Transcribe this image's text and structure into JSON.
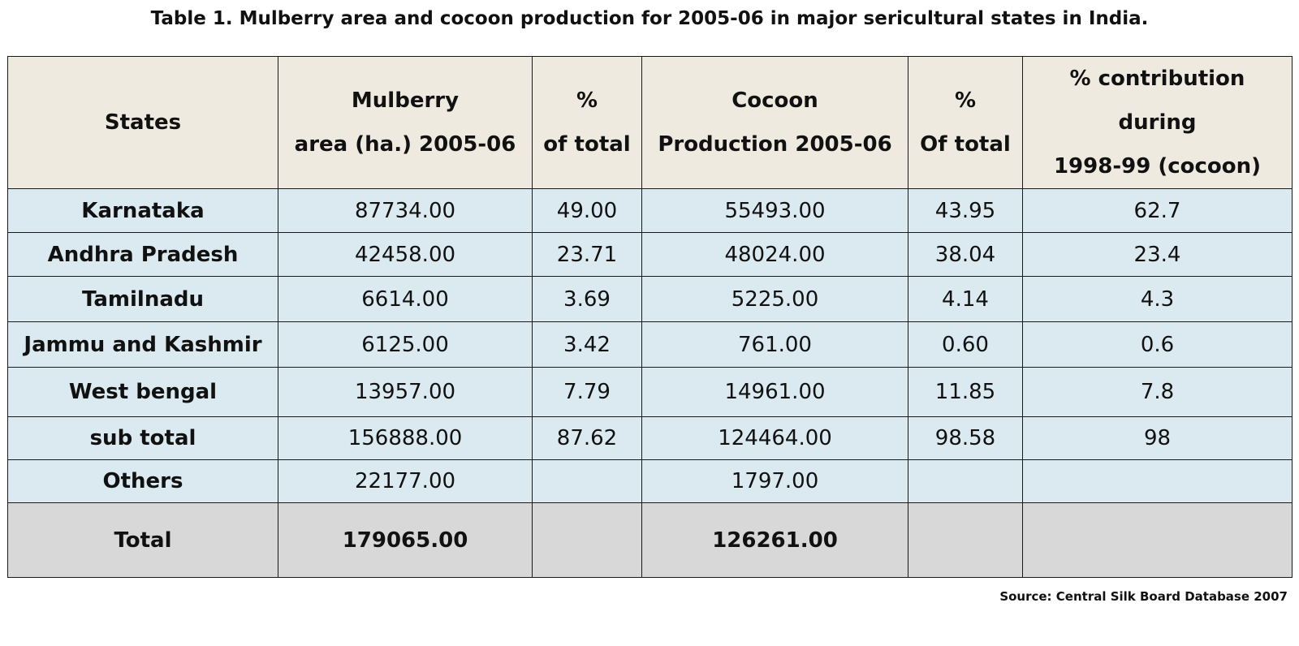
{
  "title": "Table 1. Mulberry area and cocoon production for 2005-06 in major sericultural states in India.",
  "table": {
    "headers": [
      [
        "States"
      ],
      [
        "Mulberry",
        "area (ha.) 2005-06"
      ],
      [
        "%",
        "of total"
      ],
      [
        "Cocoon",
        "Production 2005-06"
      ],
      [
        "%",
        "Of total"
      ],
      [
        "% contribution",
        "during",
        "1998-99 (cocoon)"
      ]
    ],
    "rows": [
      {
        "state": "Karnataka",
        "area": "87734.00",
        "area_pct": "49.00",
        "cocoon": "55493.00",
        "cocoon_pct": "43.95",
        "contrib": "62.7"
      },
      {
        "state": "Andhra Pradesh",
        "area": "42458.00",
        "area_pct": "23.71",
        "cocoon": "48024.00",
        "cocoon_pct": "38.04",
        "contrib": "23.4"
      },
      {
        "state": "Tamilnadu",
        "area": "6614.00",
        "area_pct": "3.69",
        "cocoon": "5225.00",
        "cocoon_pct": "4.14",
        "contrib": "4.3"
      },
      {
        "state": "Jammu and Kashmir",
        "area": "6125.00",
        "area_pct": "3.42",
        "cocoon": "761.00",
        "cocoon_pct": "0.60",
        "contrib": "0.6"
      },
      {
        "state": "West bengal",
        "area": "13957.00",
        "area_pct": "7.79",
        "cocoon": "14961.00",
        "cocoon_pct": "11.85",
        "contrib": "7.8"
      },
      {
        "state": "sub total",
        "area": "156888.00",
        "area_pct": "87.62",
        "cocoon": "124464.00",
        "cocoon_pct": "98.58",
        "contrib": "98"
      },
      {
        "state": "Others",
        "area": "22177.00",
        "area_pct": "",
        "cocoon": "1797.00",
        "cocoon_pct": "",
        "contrib": ""
      }
    ],
    "total": {
      "state": "Total",
      "area": "179065.00",
      "area_pct": "",
      "cocoon": "126261.00",
      "cocoon_pct": "",
      "contrib": ""
    }
  },
  "source": "Source: Central Silk Board Database 2007"
}
